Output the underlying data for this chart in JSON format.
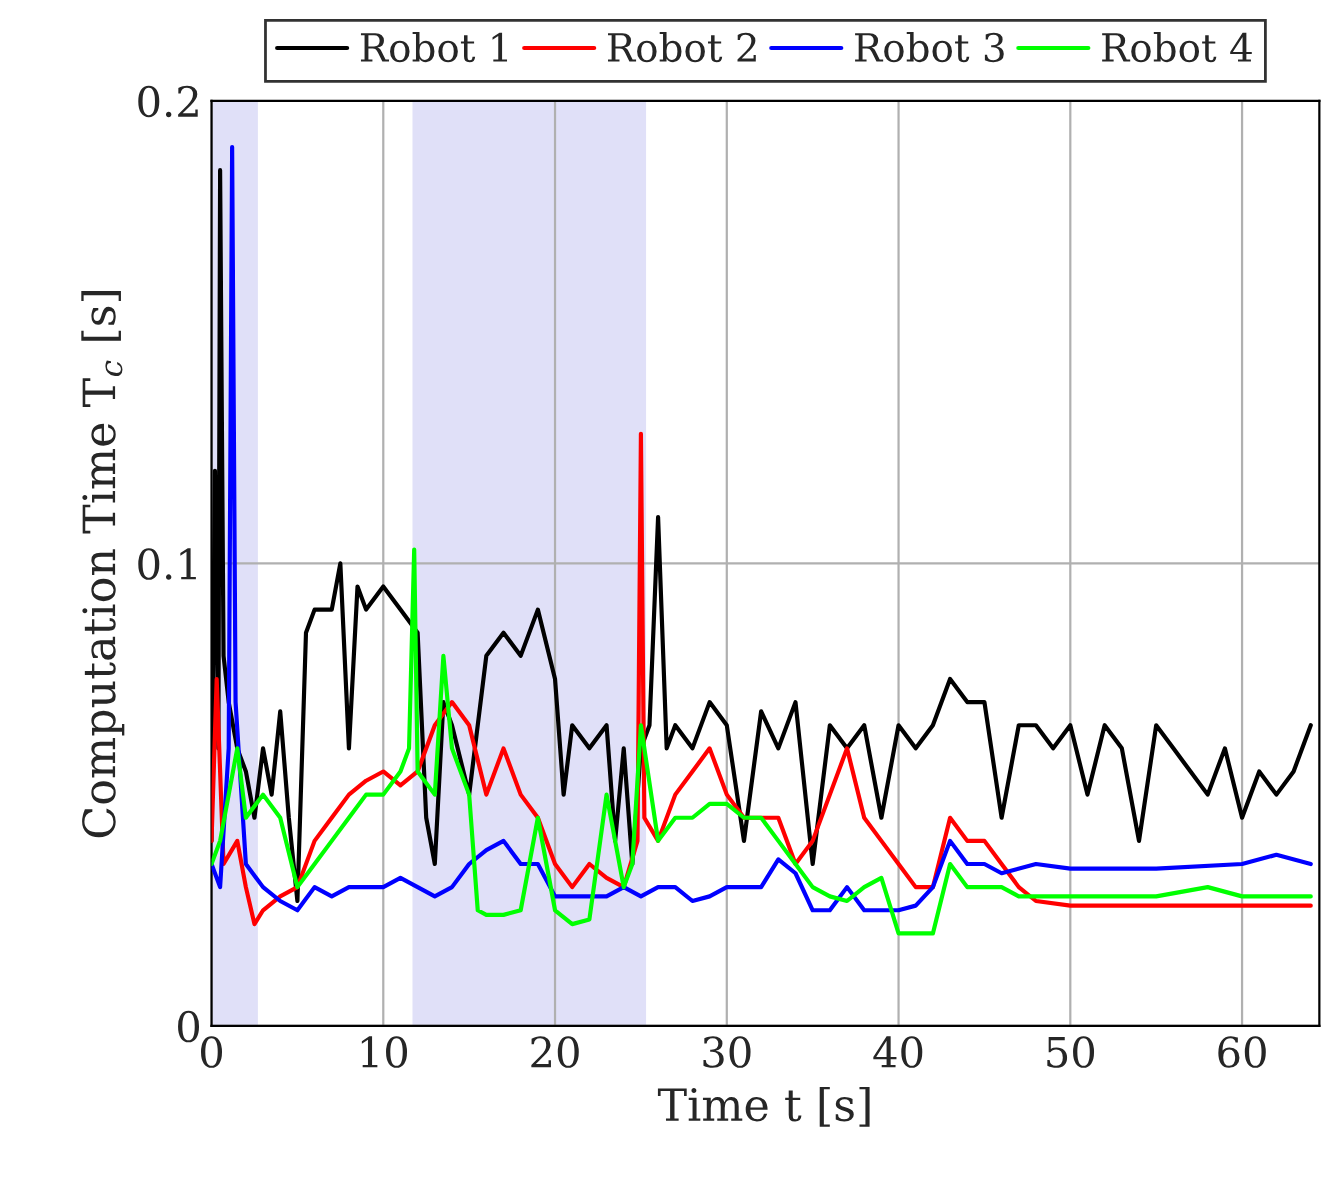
{
  "chart_data": {
    "type": "line",
    "xlabel": "Time t [s]",
    "ylabel": "Computation Time T$_{c}$ [s]",
    "xlim": [
      0,
      64.5
    ],
    "xticks": [
      0,
      10,
      20,
      30,
      40,
      50,
      60
    ],
    "ylim": [
      0,
      0.2
    ],
    "yticks": [
      0,
      0.1,
      0.2
    ],
    "grid": true,
    "legend": "top",
    "line_style": "solid",
    "marker": "none",
    "bands": [
      {
        "axis": "x",
        "from": 0,
        "to": 2.7,
        "color": "#e0e0f8"
      },
      {
        "axis": "x",
        "from": 11.7,
        "to": 25.3,
        "color": "#e0e0f8"
      }
    ],
    "series": [
      {
        "name": "Robot 1",
        "color": "#000000",
        "x": [
          0,
          0.2,
          0.4,
          0.5,
          0.7,
          1,
          1.5,
          2,
          2.5,
          3,
          3.5,
          4,
          4.5,
          5,
          5.5,
          6,
          7,
          7.5,
          8,
          8.5,
          9,
          10,
          11,
          12,
          12.5,
          13,
          13.5,
          14,
          15,
          16,
          17,
          18,
          19,
          20,
          20.5,
          21,
          22,
          23,
          23.5,
          24,
          24.5,
          25,
          25.5,
          26,
          26.5,
          27,
          28,
          29,
          30,
          31,
          32,
          33,
          34,
          35,
          36,
          37,
          38,
          39,
          40,
          41,
          42,
          43,
          44,
          45,
          46,
          47,
          48,
          49,
          50,
          51,
          52,
          53,
          54,
          55,
          56,
          57,
          58,
          59,
          60,
          61,
          62,
          63,
          64
        ],
        "values": [
          0.04,
          0.12,
          0.06,
          0.185,
          0.08,
          0.07,
          0.06,
          0.055,
          0.045,
          0.06,
          0.05,
          0.068,
          0.045,
          0.027,
          0.085,
          0.09,
          0.09,
          0.1,
          0.06,
          0.095,
          0.09,
          0.095,
          0.09,
          0.085,
          0.045,
          0.035,
          0.07,
          0.065,
          0.05,
          0.08,
          0.085,
          0.08,
          0.09,
          0.075,
          0.05,
          0.065,
          0.06,
          0.065,
          0.04,
          0.06,
          0.035,
          0.06,
          0.065,
          0.11,
          0.06,
          0.065,
          0.06,
          0.07,
          0.065,
          0.04,
          0.068,
          0.06,
          0.07,
          0.035,
          0.065,
          0.06,
          0.065,
          0.045,
          0.065,
          0.06,
          0.065,
          0.075,
          0.07,
          0.07,
          0.045,
          0.065,
          0.065,
          0.06,
          0.065,
          0.05,
          0.065,
          0.06,
          0.04,
          0.065,
          0.06,
          0.055,
          0.05,
          0.06,
          0.045,
          0.055,
          0.05,
          0.055,
          0.065
        ]
      },
      {
        "name": "Robot 2",
        "color": "#ff0000",
        "x": [
          0,
          0.3,
          0.7,
          1.5,
          2,
          2.5,
          3,
          4,
          5,
          6,
          7,
          8,
          9,
          10,
          11,
          12,
          13,
          14,
          15,
          16,
          17,
          18,
          19,
          20,
          21,
          22,
          23,
          24,
          24.8,
          25,
          25.2,
          26,
          27,
          28,
          29,
          30,
          31,
          32,
          33,
          34,
          35,
          36,
          37,
          38,
          39,
          40,
          41,
          42,
          43,
          44,
          45,
          46,
          47,
          48,
          50,
          55,
          60,
          64
        ],
        "values": [
          0.04,
          0.075,
          0.035,
          0.04,
          0.03,
          0.022,
          0.025,
          0.028,
          0.03,
          0.04,
          0.045,
          0.05,
          0.053,
          0.055,
          0.052,
          0.055,
          0.065,
          0.07,
          0.065,
          0.05,
          0.06,
          0.05,
          0.045,
          0.035,
          0.03,
          0.035,
          0.032,
          0.03,
          0.04,
          0.128,
          0.045,
          0.04,
          0.05,
          0.055,
          0.06,
          0.05,
          0.045,
          0.045,
          0.045,
          0.035,
          0.04,
          0.05,
          0.06,
          0.045,
          0.04,
          0.035,
          0.03,
          0.03,
          0.045,
          0.04,
          0.04,
          0.035,
          0.03,
          0.027,
          0.026,
          0.026,
          0.026,
          0.026
        ]
      },
      {
        "name": "Robot 3",
        "color": "#0000ff",
        "x": [
          0,
          0.5,
          1,
          1.2,
          1.4,
          2,
          3,
          4,
          5,
          6,
          7,
          8,
          9,
          10,
          11,
          12,
          13,
          14,
          15,
          16,
          17,
          18,
          19,
          20,
          21,
          22,
          23,
          24,
          25,
          26,
          27,
          28,
          29,
          30,
          31,
          32,
          33,
          34,
          35,
          36,
          37,
          38,
          39,
          40,
          41,
          42,
          43,
          44,
          45,
          46,
          48,
          50,
          55,
          60,
          62,
          64
        ],
        "values": [
          0.035,
          0.03,
          0.06,
          0.19,
          0.07,
          0.035,
          0.03,
          0.027,
          0.025,
          0.03,
          0.028,
          0.03,
          0.03,
          0.03,
          0.032,
          0.03,
          0.028,
          0.03,
          0.035,
          0.038,
          0.04,
          0.035,
          0.035,
          0.028,
          0.028,
          0.028,
          0.028,
          0.03,
          0.028,
          0.03,
          0.03,
          0.027,
          0.028,
          0.03,
          0.03,
          0.03,
          0.036,
          0.033,
          0.025,
          0.025,
          0.03,
          0.025,
          0.025,
          0.025,
          0.026,
          0.03,
          0.04,
          0.035,
          0.035,
          0.033,
          0.035,
          0.034,
          0.034,
          0.035,
          0.037,
          0.035
        ]
      },
      {
        "name": "Robot 4",
        "color": "#00ff00",
        "x": [
          0,
          0.5,
          1,
          1.5,
          2,
          3,
          4,
          5,
          6,
          7,
          8,
          9,
          10,
          11,
          11.5,
          11.8,
          12,
          13,
          13.5,
          14,
          15,
          15.5,
          16,
          17,
          18,
          19,
          20,
          21,
          22,
          23,
          24,
          24.5,
          25,
          26,
          27,
          28,
          29,
          30,
          31,
          32,
          33,
          34,
          35,
          36,
          37,
          38,
          39,
          40,
          41,
          42,
          43,
          44,
          45,
          46,
          47,
          50,
          55,
          58,
          60,
          64
        ],
        "values": [
          0.035,
          0.04,
          0.05,
          0.06,
          0.045,
          0.05,
          0.045,
          0.03,
          0.035,
          0.04,
          0.045,
          0.05,
          0.05,
          0.055,
          0.06,
          0.103,
          0.055,
          0.05,
          0.08,
          0.06,
          0.05,
          0.025,
          0.024,
          0.024,
          0.025,
          0.045,
          0.025,
          0.022,
          0.023,
          0.05,
          0.03,
          0.035,
          0.065,
          0.04,
          0.045,
          0.045,
          0.048,
          0.048,
          0.045,
          0.045,
          0.04,
          0.035,
          0.03,
          0.028,
          0.027,
          0.03,
          0.032,
          0.02,
          0.02,
          0.02,
          0.035,
          0.03,
          0.03,
          0.03,
          0.028,
          0.028,
          0.028,
          0.03,
          0.028,
          0.028
        ]
      }
    ]
  }
}
